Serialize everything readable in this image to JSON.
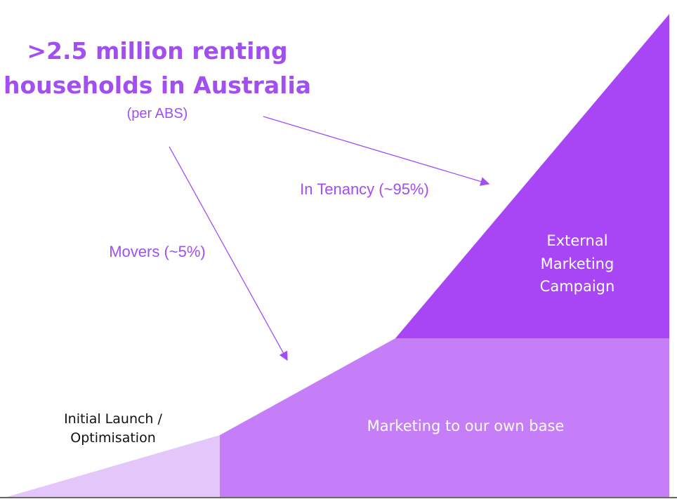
{
  "header": {
    "title_line1": ">2.5 million renting",
    "title_line2": "households in Australia",
    "source": "(per ABS)"
  },
  "flows": [
    {
      "label": "In Tenancy (~95%)"
    },
    {
      "label": "Movers (~5%)"
    }
  ],
  "segments": [
    {
      "lines": [
        "Initial Launch /",
        "Optimisation"
      ]
    },
    {
      "lines": [
        "Marketing to our own base"
      ]
    },
    {
      "lines": [
        "External",
        "Marketing",
        "Campaign"
      ]
    }
  ]
}
